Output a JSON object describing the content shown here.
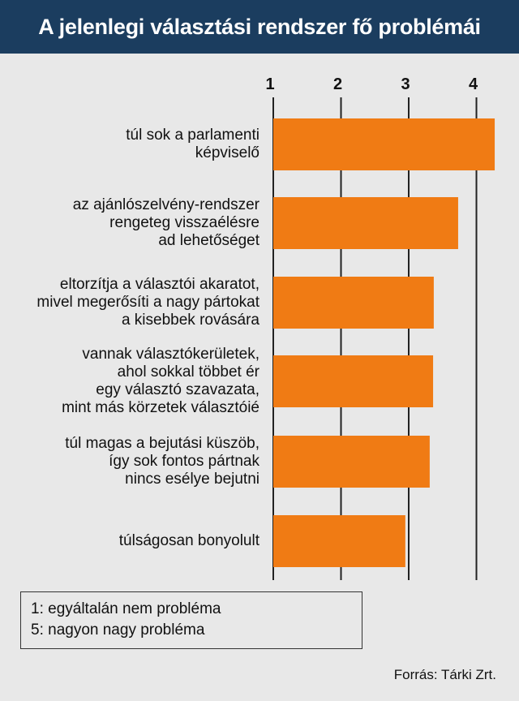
{
  "title": "A jelenlegi választási rendszer fő problémái",
  "legend": [
    "1: egyáltalán nem probléma",
    "5: nagyon nagy probléma"
  ],
  "source": "Forrás: Tárki Zrt.",
  "colors": {
    "bar": "#f07b14",
    "header": "#1b3d5f",
    "background": "#e8e8e8"
  },
  "chart_data": {
    "type": "bar",
    "orientation": "horizontal",
    "xticks": [
      "1",
      "2",
      "3",
      "4"
    ],
    "xlim": [
      1,
      4.3
    ],
    "categories": [
      "túl sok a parlamenti\nképviselő",
      "az ajánlószelvény-rendszer\nrengeteg visszaélésre\nad lehetőséget",
      "eltorzítja a választói akaratot,\nmivel megerősíti a nagy pártokat\na kisebbek rovására",
      "vannak választókerületek,\nahol sokkal többet ér\negy választó szavazata,\nmint más körzetek választóié",
      "túl magas a bejutási küszöb,\nígy sok fontos pártnak\nnincs esélye bejutni",
      "túlságosan bonyolult"
    ],
    "values": [
      4.27,
      3.73,
      3.37,
      3.36,
      3.31,
      2.95
    ],
    "grid": true
  }
}
